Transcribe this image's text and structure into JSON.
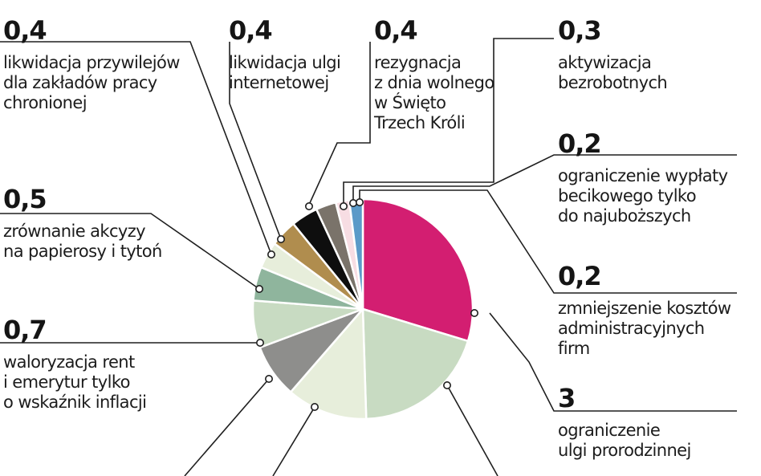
{
  "chart_data": {
    "type": "pie",
    "title": "",
    "slices": [
      {
        "value": 3,
        "value_label": "3",
        "label": "ograniczenie\nulgi prorodzinnej",
        "color": "#d31e71"
      },
      {
        "value": 2.0,
        "value_label": "",
        "label": "",
        "color": "#c8dbc2"
      },
      {
        "value": 1.2,
        "value_label": "",
        "label": "",
        "color": "#e7eedb"
      },
      {
        "value": 0.8,
        "value_label": "",
        "label": "",
        "color": "#8e8e8c"
      },
      {
        "value": 0.7,
        "value_label": "0,7",
        "label": "waloryzacja rent\ni emerytur tylko\no wskaźnik inflacji",
        "color": "#c8dbc2"
      },
      {
        "value": 0.5,
        "value_label": "0,5",
        "label": "zrównanie akcyzy\nna papierosy i tytoń",
        "color": "#8fb59d"
      },
      {
        "value": 0.4,
        "value_label": "0,4",
        "label": "likwidacja przywilejów\ndla zakładów pracy\nchronionej",
        "color": "#e7eedb"
      },
      {
        "value": 0.4,
        "value_label": "0,4",
        "label": "likwidacja ulgi\ninternetowej",
        "color": "#b08d4e"
      },
      {
        "value": 0.4,
        "value_label": "0,4",
        "label": "rezygnacja\nz dnia wolnego\nw Święto\nTrzech Króli",
        "color": "#0e0e0e"
      },
      {
        "value": 0.3,
        "value_label": "0,3",
        "label": "aktywizacja\nbezrobotnych",
        "color": "#7a736a"
      },
      {
        "value": 0.2,
        "value_label": "0,2",
        "label": "ograniczenie wypłaty\nbecikowego tylko\ndo najuboższych",
        "color": "#f7dde3"
      },
      {
        "value": 0.2,
        "value_label": "0,2",
        "label": "zmniejszenie kosztów\nadministracyjnych\nfirm",
        "color": "#5b9ac8"
      }
    ]
  }
}
